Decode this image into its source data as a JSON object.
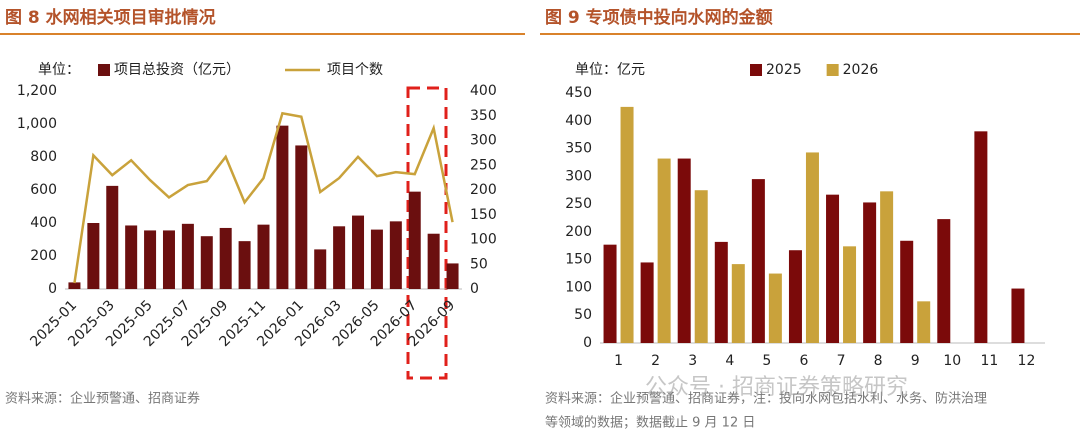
{
  "chart_data": [
    {
      "type": "bar",
      "title": "图 8 水网相关项目审批情况",
      "unit_label": "单位：",
      "categories": [
        "2025-01",
        null,
        "2025-03",
        null,
        "2025-05",
        null,
        "2025-07",
        null,
        "2025-09",
        null,
        "2025-11",
        null,
        "2026-01",
        null,
        "2026-03",
        null,
        "2026-05",
        null,
        "2026-07",
        null,
        "2026-09"
      ],
      "ylim": [
        0,
        1200
      ],
      "yticks": [
        0,
        200,
        400,
        600,
        800,
        {
          "value": 1000,
          "label": "1,000"
        },
        {
          "value": 1200,
          "label": "1,200"
        }
      ],
      "y2lim": [
        0,
        400
      ],
      "y2ticks": [
        0,
        50,
        100,
        150,
        200,
        250,
        300,
        350,
        400
      ],
      "series": [
        {
          "name": "项目总投资（亿元）",
          "type": "bar",
          "color": "#6b0f0f",
          "values": [
            40,
            400,
            625,
            385,
            355,
            355,
            395,
            320,
            370,
            290,
            390,
            990,
            870,
            240,
            380,
            445,
            360,
            410,
            590,
            335,
            155
          ]
        },
        {
          "name": "项目个数",
          "type": "line",
          "axis": "y2",
          "color": "#c9a23b",
          "values": [
            12,
            270,
            230,
            260,
            220,
            185,
            210,
            218,
            267,
            175,
            224,
            355,
            348,
            196,
            224,
            267,
            228,
            236,
            232,
            325,
            135
          ]
        }
      ],
      "source": "资料来源：企业预警通、招商证券"
    },
    {
      "type": "bar",
      "title": "图 9 专项债中投向水网的金额",
      "unit_label": "单位：亿元",
      "categories": [
        "1",
        "2",
        "3",
        "4",
        "5",
        "6",
        "7",
        "8",
        "9",
        "10",
        "11",
        "12"
      ],
      "ylim": [
        0,
        450
      ],
      "yticks": [
        0,
        50,
        100,
        150,
        200,
        250,
        300,
        350,
        400,
        450
      ],
      "series": [
        {
          "name": "2025",
          "type": "bar",
          "color": "#7b0a0a",
          "values": [
            177,
            145,
            332,
            182,
            295,
            167,
            267,
            253,
            184,
            223,
            381,
            98
          ]
        },
        {
          "name": "2026",
          "type": "bar",
          "color": "#c9a23b",
          "values": [
            425,
            332,
            275,
            142,
            125,
            343,
            174,
            273,
            75,
            null,
            null,
            null
          ]
        }
      ],
      "source": [
        "资料来源：企业预警通、招商证券，注：投向水网包括水利、水务、防洪治理",
        "等领域的数据；数据截止 9 月 12 日"
      ]
    }
  ],
  "watermark": "公众号 · 招商证券策略研究"
}
